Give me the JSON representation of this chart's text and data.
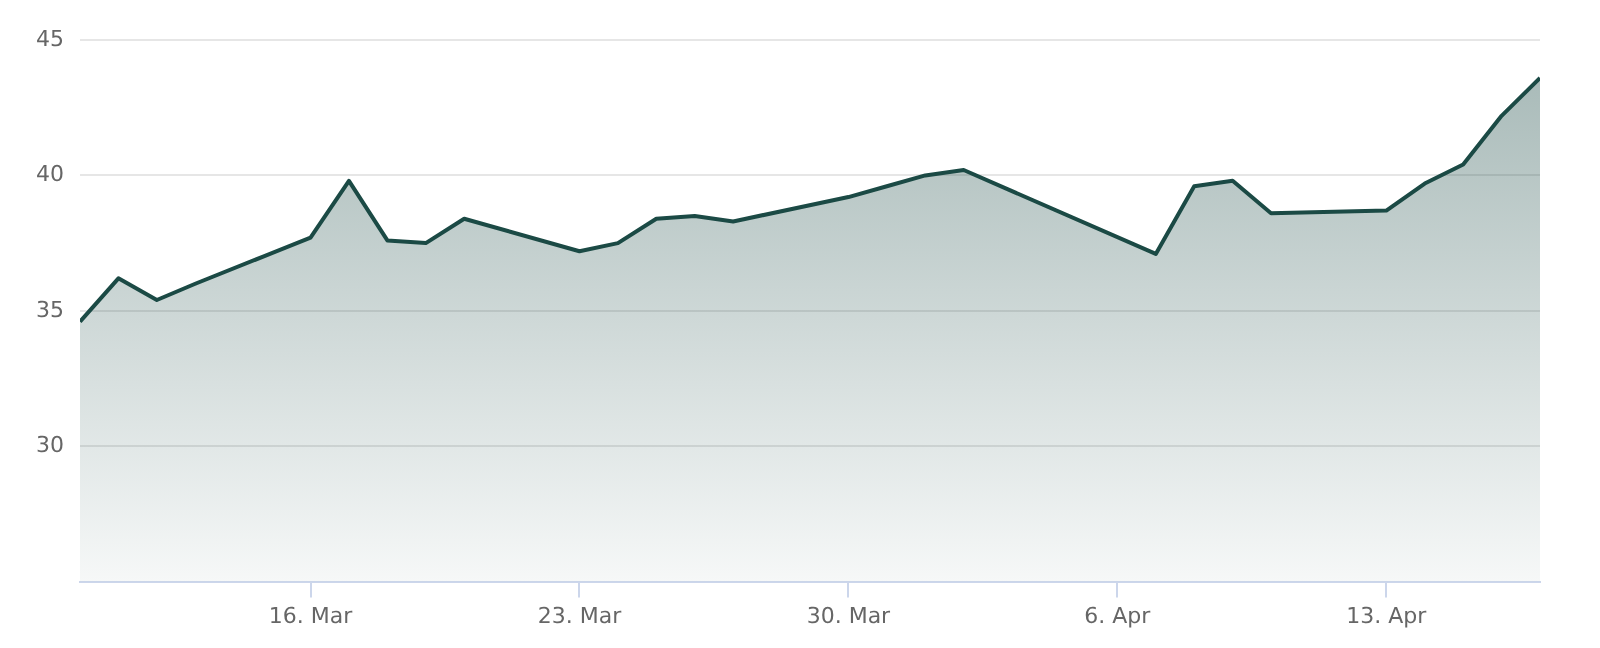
{
  "chart_data": {
    "type": "area",
    "x": [
      "--03-10",
      "--03-11",
      "--03-12",
      "--03-13",
      "--03-16",
      "--03-17",
      "--03-18",
      "--03-19",
      "--03-20",
      "--03-23",
      "--03-24",
      "--03-25",
      "--03-26",
      "--03-27",
      "--03-30",
      "--03-31",
      "--04-01",
      "--04-02",
      "--04-07",
      "--04-08",
      "--04-09",
      "--04-10",
      "--04-13",
      "--04-14",
      "--04-15",
      "--04-16",
      "--04-17"
    ],
    "series": [
      {
        "color": "#1b4a45",
        "values": [
          34.6,
          36.2,
          35.4,
          36.0,
          37.7,
          39.8,
          37.6,
          37.5,
          38.4,
          37.2,
          37.5,
          38.4,
          38.5,
          38.3,
          39.2,
          39.6,
          40.0,
          40.2,
          37.1,
          39.6,
          39.8,
          38.6,
          38.7,
          39.7,
          40.4,
          42.2,
          43.6
        ]
      }
    ],
    "xlim": [
      "--03-10",
      "--04-17"
    ],
    "xticks": [
      {
        "value": "--03-16",
        "label": "16. Mar"
      },
      {
        "value": "--03-23",
        "label": "23. Mar"
      },
      {
        "value": "--03-30",
        "label": "30. Mar"
      },
      {
        "value": "--04-06",
        "label": "6. Apr"
      },
      {
        "value": "--04-13",
        "label": "13. Apr"
      }
    ],
    "ylim": [
      25,
      45
    ],
    "yticks": [
      30,
      35,
      40,
      45
    ],
    "grid": "y",
    "legend": false,
    "marker": "none",
    "line_style": "solid"
  }
}
